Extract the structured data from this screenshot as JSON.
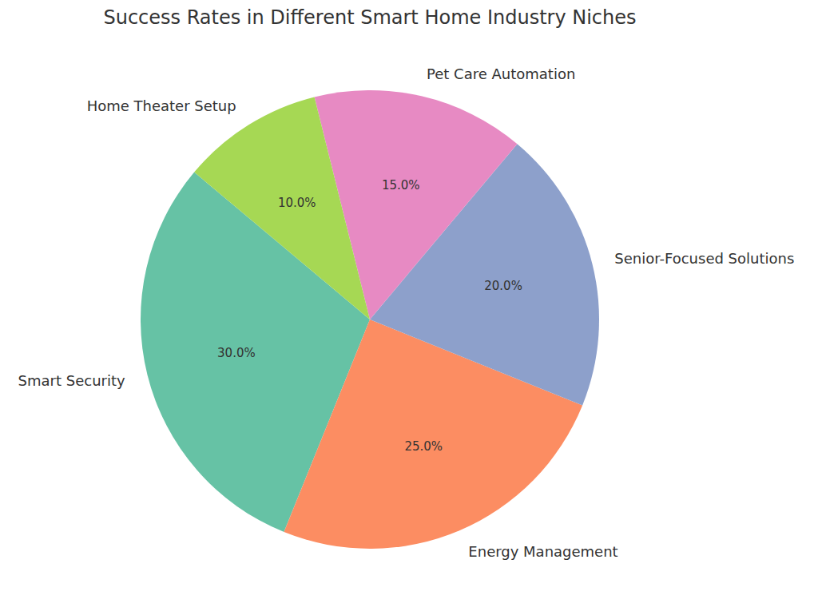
{
  "chart_data": {
    "type": "pie",
    "title": "Success Rates in Different Smart Home Industry Niches",
    "categories": [
      "Smart Security",
      "Energy Management",
      "Senior-Focused Solutions",
      "Pet Care Automation",
      "Home Theater Setup"
    ],
    "values": [
      30,
      25,
      20,
      15,
      10
    ],
    "value_labels": [
      "30.0%",
      "25.0%",
      "20.0%",
      "15.0%",
      "10.0%"
    ],
    "colors": [
      "#66c2a5",
      "#fc8d62",
      "#8da0cb",
      "#e78ac3",
      "#a6d854"
    ],
    "data_labels": true
  }
}
